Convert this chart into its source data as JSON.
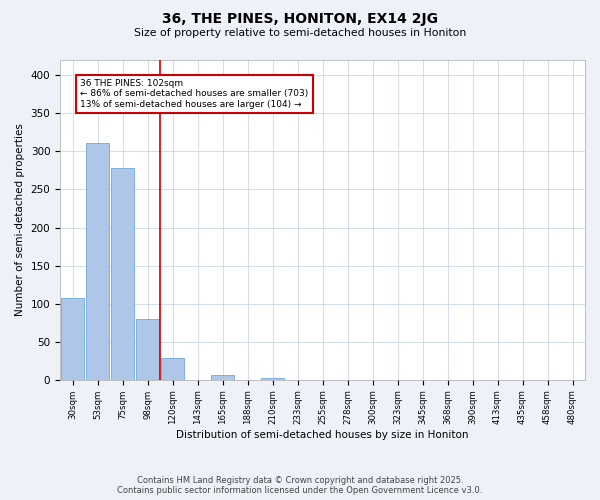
{
  "title1": "36, THE PINES, HONITON, EX14 2JG",
  "title2": "Size of property relative to semi-detached houses in Honiton",
  "xlabel": "Distribution of semi-detached houses by size in Honiton",
  "ylabel": "Number of semi-detached properties",
  "bar_labels": [
    "30sqm",
    "53sqm",
    "75sqm",
    "98sqm",
    "120sqm",
    "143sqm",
    "165sqm",
    "188sqm",
    "210sqm",
    "233sqm",
    "255sqm",
    "278sqm",
    "300sqm",
    "323sqm",
    "345sqm",
    "368sqm",
    "390sqm",
    "413sqm",
    "435sqm",
    "458sqm",
    "480sqm"
  ],
  "bar_values": [
    107,
    311,
    278,
    80,
    29,
    0,
    6,
    0,
    2,
    0,
    0,
    0,
    0,
    0,
    0,
    0,
    0,
    0,
    0,
    0,
    0
  ],
  "bar_color": "#aec6e8",
  "bar_edgecolor": "#5a9fd4",
  "vline_x": 3.5,
  "vline_color": "#cc0000",
  "annotation_text": "36 THE PINES: 102sqm\n← 86% of semi-detached houses are smaller (703)\n13% of semi-detached houses are larger (104) →",
  "annotation_box_color": "#cc0000",
  "annotation_text_color": "#000000",
  "ylim": [
    0,
    420
  ],
  "yticks": [
    0,
    50,
    100,
    150,
    200,
    250,
    300,
    350,
    400
  ],
  "footer1": "Contains HM Land Registry data © Crown copyright and database right 2025.",
  "footer2": "Contains public sector information licensed under the Open Government Licence v3.0.",
  "bg_color": "#eef2f8",
  "plot_bg_color": "#ffffff",
  "grid_color": "#ccd9e8"
}
